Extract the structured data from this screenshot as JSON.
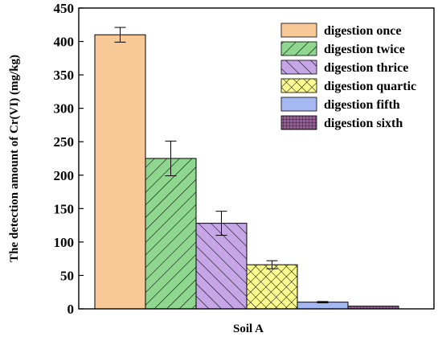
{
  "chart_data": {
    "type": "bar",
    "categories": [
      "Soil A"
    ],
    "xlabel": "Soil A",
    "ylabel": "The detection amount of Cr(VI) (mg/kg)",
    "ylim": [
      0,
      450
    ],
    "yticks": [
      0,
      50,
      100,
      150,
      200,
      250,
      300,
      350,
      400,
      450
    ],
    "grid": false,
    "legend_position": "top-right",
    "series": [
      {
        "name": "digestion once",
        "values": [
          410
        ],
        "error": [
          11
        ],
        "color": "#f9c897",
        "pattern": "solid"
      },
      {
        "name": "digestion twice",
        "values": [
          225
        ],
        "error": [
          26
        ],
        "color": "#8fd68f",
        "pattern": "diagonal-down"
      },
      {
        "name": "digestion thrice",
        "values": [
          128
        ],
        "error": [
          18
        ],
        "color": "#c6a6e6",
        "pattern": "diagonal-up"
      },
      {
        "name": "digestion quartic",
        "values": [
          66
        ],
        "error": [
          6
        ],
        "color": "#fbfb8f",
        "pattern": "crosshatch"
      },
      {
        "name": "digestion fifth",
        "values": [
          10
        ],
        "error": [
          1
        ],
        "color": "#a6b8f2",
        "pattern": "solid"
      },
      {
        "name": "digestion sixth",
        "values": [
          4
        ],
        "error": [
          0
        ],
        "color": "#9a5c9a",
        "pattern": "grid"
      }
    ]
  }
}
